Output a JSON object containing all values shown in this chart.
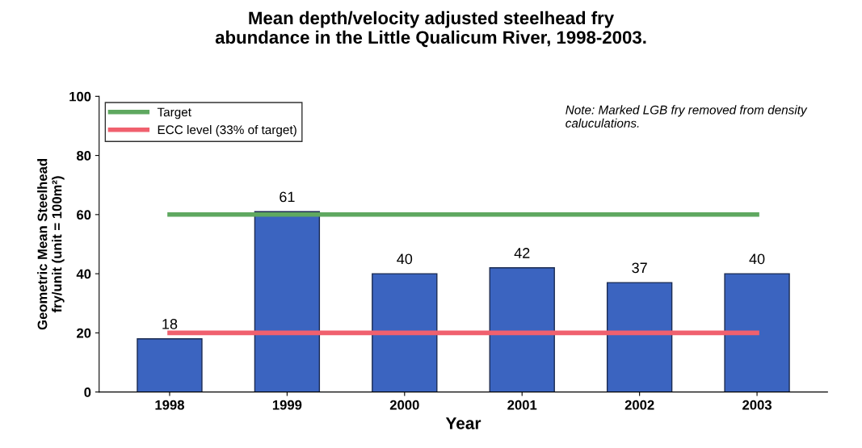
{
  "chart_data": {
    "type": "bar",
    "title": "Mean depth/velocity adjusted steelhead fry\nabundance in the Little Qualicum River, 1998-2003.",
    "xlabel": "Year",
    "ylabel": "Geometric Mean Steelhead\nfry/unit (unit = 100m²)",
    "categories": [
      "1998",
      "1999",
      "2000",
      "2001",
      "2002",
      "2003"
    ],
    "series": [
      {
        "color": "#3b64c0",
        "values": [
          18,
          61,
          40,
          42,
          37,
          40
        ],
        "value_labels": [
          "18",
          "61",
          "40",
          "42",
          "37",
          "40"
        ]
      },
      {
        "type": "line",
        "name": "Target",
        "color": "#5fa860",
        "values": [
          60,
          60,
          60,
          60,
          60,
          60
        ]
      },
      {
        "type": "line",
        "name": "ECC level (33% of target)",
        "color": "#f0606e",
        "values": [
          20,
          20,
          20,
          20,
          20,
          20
        ]
      }
    ],
    "ylim": [
      0,
      100
    ],
    "yticks": [
      0,
      20,
      40,
      60,
      80,
      100
    ],
    "annotations": [
      "Note: Marked LGB fry removed from density\ncaluculations."
    ],
    "legend": "top left",
    "grid": false,
    "marker": "none",
    "line_style": "solid"
  }
}
